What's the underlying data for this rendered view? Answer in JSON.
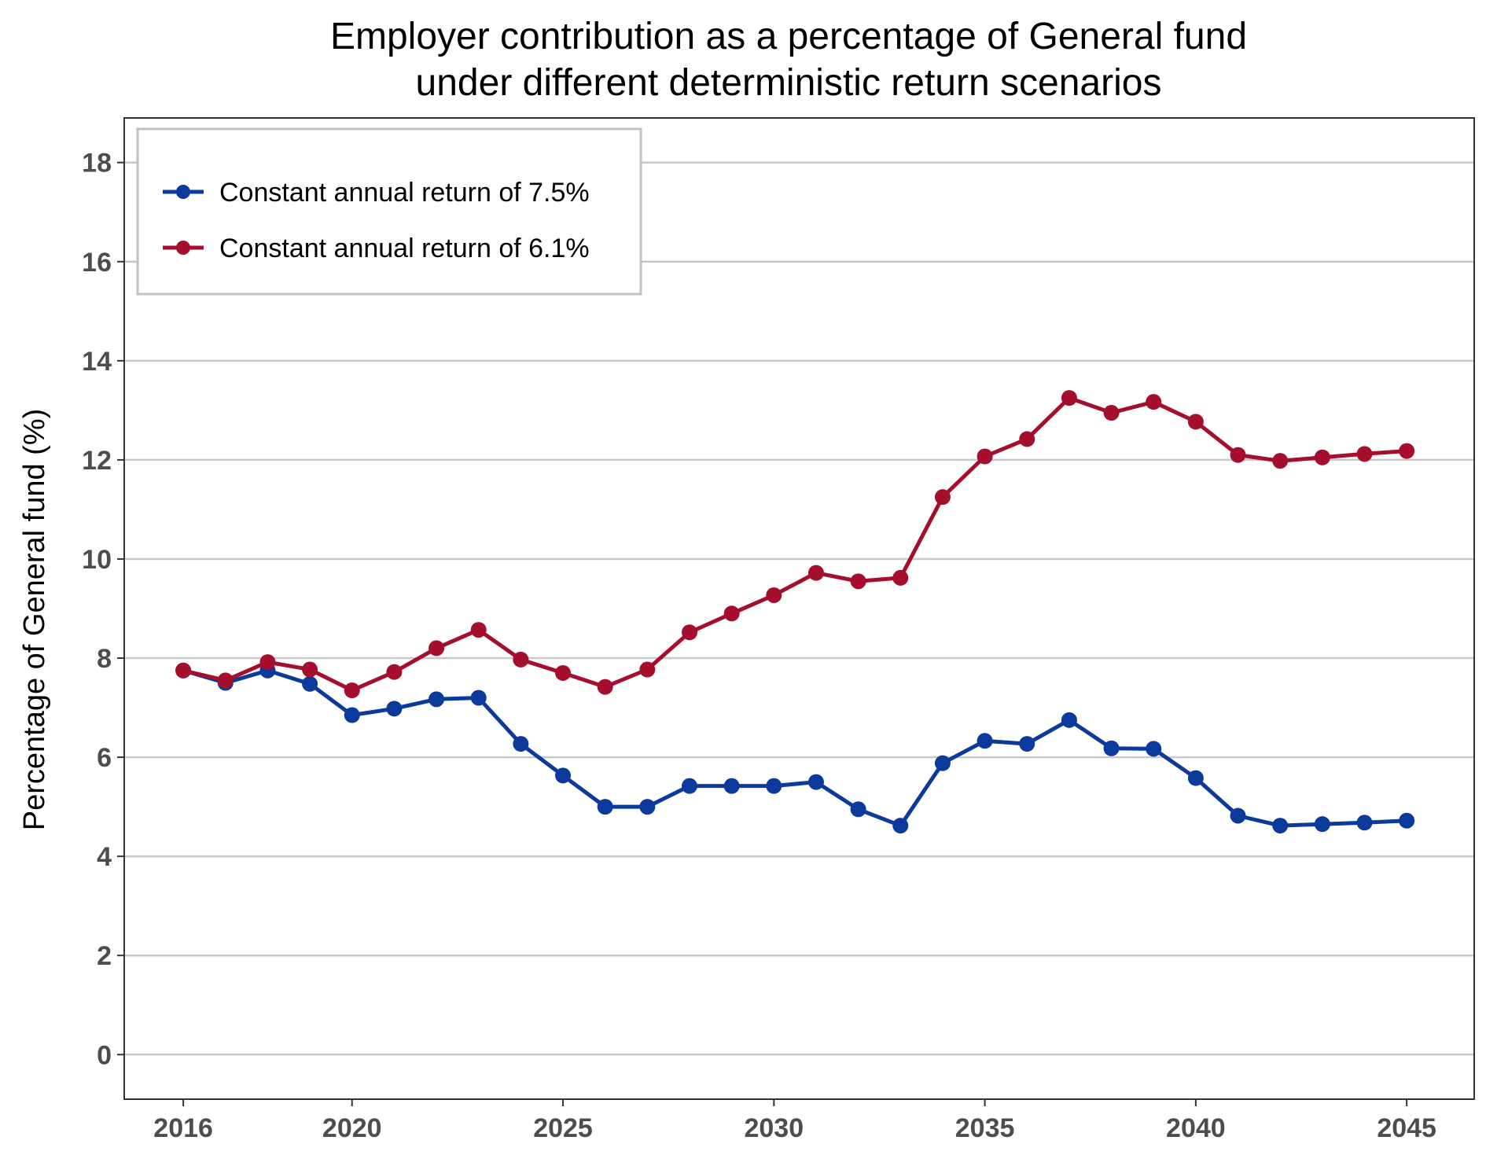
{
  "chart_data": {
    "type": "line",
    "title": "Employer contribution as a percentage of General fund under different deterministic return scenarios",
    "title_lines": [
      "Employer contribution as a percentage of General fund",
      "under different deterministic return scenarios"
    ],
    "xlabel": "",
    "ylabel": "Percentage of General fund (%)",
    "xlim": [
      2014.6,
      2046.6
    ],
    "ylim": [
      -0.9,
      18.9
    ],
    "x_ticks": [
      2016,
      2020,
      2025,
      2030,
      2035,
      2040,
      2045
    ],
    "y_ticks": [
      0,
      2,
      4,
      6,
      8,
      10,
      12,
      14,
      16,
      18
    ],
    "grid": "horizontal",
    "legend_position": "top-left",
    "x": [
      2016,
      2017,
      2018,
      2019,
      2020,
      2021,
      2022,
      2023,
      2024,
      2025,
      2026,
      2027,
      2028,
      2029,
      2030,
      2031,
      2032,
      2033,
      2034,
      2035,
      2036,
      2037,
      2038,
      2039,
      2040,
      2041,
      2042,
      2043,
      2044,
      2045
    ],
    "series": [
      {
        "name": "Constant annual return of 7.5%",
        "color": "#0c3a9c",
        "values": [
          7.75,
          7.5,
          7.75,
          7.48,
          6.85,
          6.98,
          7.17,
          7.2,
          6.27,
          5.63,
          5.0,
          5.0,
          5.42,
          5.42,
          5.42,
          5.5,
          4.95,
          4.62,
          5.88,
          6.33,
          6.27,
          6.75,
          6.18,
          6.17,
          5.58,
          4.82,
          4.62,
          4.65,
          4.68,
          4.72
        ]
      },
      {
        "name": "Constant annual return of 6.1%",
        "color": "#a50f2d",
        "values": [
          7.75,
          7.55,
          7.92,
          7.77,
          7.35,
          7.72,
          8.2,
          8.57,
          7.97,
          7.7,
          7.42,
          7.77,
          8.52,
          8.9,
          9.27,
          9.72,
          9.55,
          9.62,
          11.25,
          12.07,
          12.42,
          13.25,
          12.95,
          13.17,
          12.77,
          12.1,
          11.98,
          12.05,
          12.12,
          12.18
        ]
      }
    ]
  }
}
